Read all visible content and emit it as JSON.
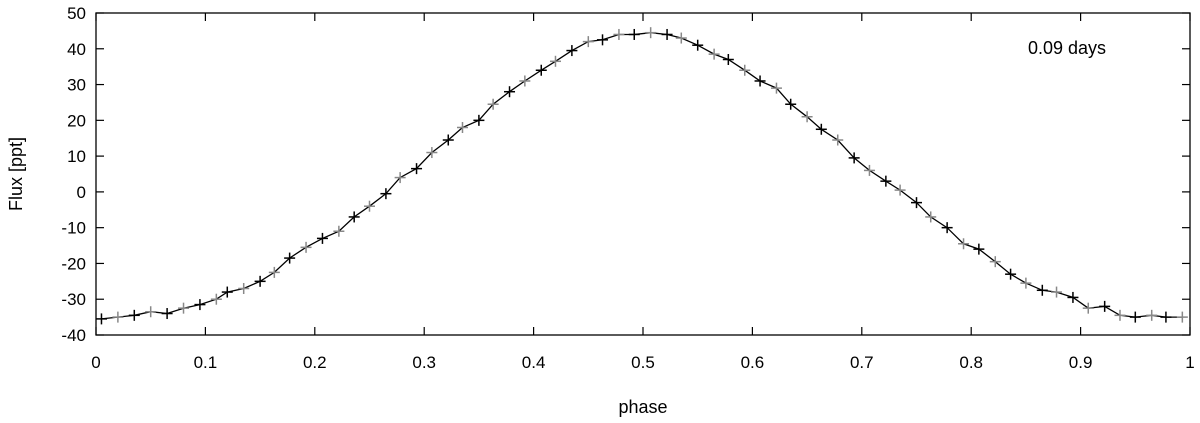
{
  "chart_data": {
    "type": "line",
    "xlabel": "phase",
    "ylabel": "Flux [ppt]",
    "annotation": "0.09 days",
    "xlim": [
      0,
      1
    ],
    "ylim": [
      -40,
      50
    ],
    "x_ticks": [
      "0",
      "0.1",
      "0.2",
      "0.3",
      "0.4",
      "0.5",
      "0.6",
      "0.7",
      "0.8",
      "0.9",
      "1"
    ],
    "y_ticks": [
      "50",
      "40",
      "30",
      "20",
      "10",
      "0",
      "-10",
      "-20",
      "-30",
      "-40"
    ],
    "grid": false,
    "series": [
      {
        "marker": "plus",
        "line_color": "#000000",
        "marker_colors": [
          "#000000",
          "#888888"
        ],
        "x": [
          0.005,
          0.02,
          0.035,
          0.05,
          0.065,
          0.08,
          0.095,
          0.11,
          0.12,
          0.135,
          0.15,
          0.163,
          0.177,
          0.192,
          0.207,
          0.222,
          0.236,
          0.25,
          0.265,
          0.278,
          0.293,
          0.307,
          0.322,
          0.335,
          0.35,
          0.363,
          0.378,
          0.392,
          0.407,
          0.42,
          0.435,
          0.45,
          0.463,
          0.478,
          0.492,
          0.507,
          0.522,
          0.535,
          0.55,
          0.565,
          0.578,
          0.593,
          0.607,
          0.622,
          0.635,
          0.65,
          0.663,
          0.678,
          0.693,
          0.707,
          0.722,
          0.735,
          0.75,
          0.763,
          0.778,
          0.793,
          0.807,
          0.822,
          0.836,
          0.85,
          0.865,
          0.878,
          0.893,
          0.907,
          0.922,
          0.936,
          0.95,
          0.965,
          0.978,
          0.993
        ],
        "y": [
          -35.5,
          -35,
          -34.5,
          -33.5,
          -34,
          -32.5,
          -31.5,
          -30,
          -28,
          -27,
          -25,
          -22.5,
          -18.5,
          -15.5,
          -13,
          -11,
          -7,
          -4,
          -0.5,
          4,
          6.5,
          11,
          14.5,
          18,
          20,
          24.5,
          28,
          31,
          34,
          36.5,
          39.5,
          42,
          42.5,
          44,
          44,
          44.5,
          44,
          43,
          41,
          38.5,
          37,
          34,
          31,
          29,
          24.5,
          21,
          17.5,
          14.5,
          9.5,
          6,
          3,
          0.5,
          -3,
          -7,
          -10,
          -14.5,
          -16,
          -19.5,
          -23,
          -25.5,
          -27.5,
          -28,
          -29.5,
          -32.5,
          -32,
          -34.5,
          -35,
          -34.5,
          -35,
          -35
        ]
      }
    ]
  }
}
